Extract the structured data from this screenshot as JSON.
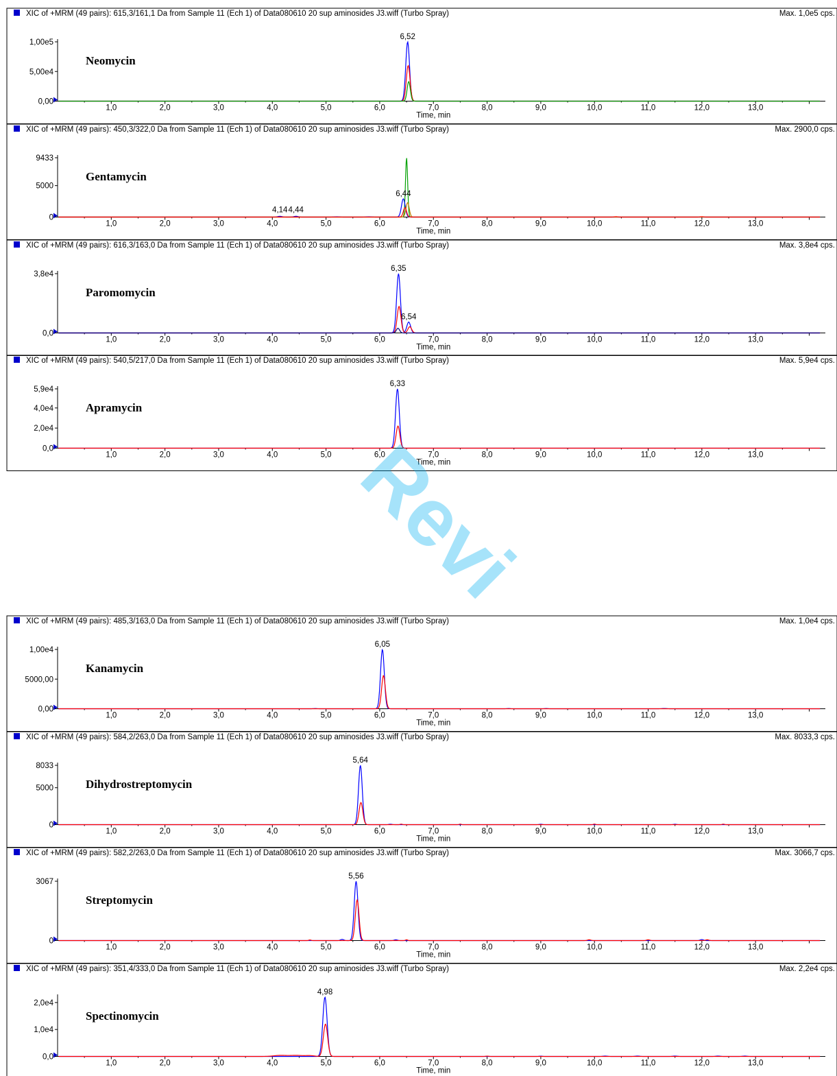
{
  "page": {
    "watermark": "Revi",
    "x_axis": {
      "label": "Time, min",
      "range": [
        0,
        14.3
      ],
      "ticks": [
        "1,0",
        "2,0",
        "3,0",
        "4,0",
        "5,0",
        "6,0",
        "7,0",
        "8,0",
        "9,0",
        "10,0",
        "11,0",
        "12,0",
        "13,0"
      ]
    },
    "colors": {
      "blue": "#0000ff",
      "red": "#ff0000",
      "green": "#00a000",
      "orange": "#c08000",
      "navy": "#000080",
      "frame": "#000000",
      "marker": "#0000cc"
    }
  },
  "chart_data": [
    {
      "type": "line",
      "header": "XIC of +MRM (49 pairs): 615,3/161,1 Da  from Sample 11 (Ech 1) of Data080610  20 sup aminosides J3.wiff (Turbo Spray)",
      "max": "Max. 1,0e5 cps.",
      "compound": "Neomycin",
      "ylim": [
        0,
        100000
      ],
      "y_ticks": [
        {
          "v": 0,
          "t": "0,00"
        },
        {
          "v": 50000,
          "t": "5,00e4"
        },
        {
          "v": 100000,
          "t": "1,00e5"
        }
      ],
      "peak_labels": [
        {
          "t": 6.52,
          "y": 100000,
          "text": "6,52"
        }
      ],
      "series": [
        {
          "color": "blue",
          "peaks": [
            [
              6.52,
              100000,
              0.035
            ]
          ]
        },
        {
          "color": "red",
          "peaks": [
            [
              6.53,
              60000,
              0.035
            ]
          ]
        },
        {
          "color": "green",
          "peaks": [
            [
              6.54,
              33000,
              0.03
            ]
          ]
        }
      ]
    },
    {
      "type": "line",
      "header": "XIC of +MRM (49 pairs): 450,3/322,0 Da  from Sample 11 (Ech 1) of Data080610  20 sup aminosides J3.wiff (Turbo Spray)",
      "max": "Max. 2900,0 cps.",
      "compound": "Gentamycin",
      "ylim": [
        0,
        9433
      ],
      "y_ticks": [
        {
          "v": 0,
          "t": "0"
        },
        {
          "v": 5000,
          "t": "5000"
        },
        {
          "v": 9433,
          "t": "9433"
        }
      ],
      "peak_labels": [
        {
          "t": 4.14,
          "y": 300,
          "text": "4,14"
        },
        {
          "t": 4.44,
          "y": 300,
          "text": "4,44"
        },
        {
          "t": 6.44,
          "y": 2900,
          "text": "6,44"
        }
      ],
      "series": [
        {
          "color": "green",
          "peaks": [
            [
              6.5,
              9433,
              0.02
            ]
          ]
        },
        {
          "color": "blue",
          "peaks": [
            [
              6.44,
              2900,
              0.035
            ],
            [
              4.14,
              120,
              0.04
            ],
            [
              4.44,
              120,
              0.04
            ],
            [
              5.2,
              40,
              0.05
            ],
            [
              5.8,
              40,
              0.05
            ]
          ]
        },
        {
          "color": "orange",
          "peaks": [
            [
              6.52,
              2300,
              0.03
            ]
          ]
        },
        {
          "color": "red",
          "peaks": [
            [
              6.47,
              1500,
              0.03
            ],
            [
              10.4,
              60,
              0.03
            ],
            [
              12.0,
              60,
              0.03
            ]
          ]
        }
      ]
    },
    {
      "type": "line",
      "header": "XIC of +MRM (49 pairs): 616,3/163,0 Da  from Sample 11 (Ech 1) of Data080610  20 sup aminosides J3.wiff (Turbo Spray)",
      "max": "Max. 3,8e4 cps.",
      "compound": "Paromomycin",
      "ylim": [
        0,
        38000
      ],
      "y_ticks": [
        {
          "v": 0,
          "t": "0,0"
        },
        {
          "v": 38000,
          "t": "3,8e4"
        }
      ],
      "peak_labels": [
        {
          "t": 6.35,
          "y": 38000,
          "text": "6,35"
        },
        {
          "t": 6.54,
          "y": 7000,
          "text": "6,54"
        }
      ],
      "series": [
        {
          "color": "blue",
          "peaks": [
            [
              6.35,
              38000,
              0.035
            ],
            [
              6.54,
              7000,
              0.035
            ]
          ]
        },
        {
          "color": "red",
          "peaks": [
            [
              6.36,
              17000,
              0.035
            ],
            [
              6.56,
              4000,
              0.035
            ]
          ]
        },
        {
          "color": "navy",
          "peaks": [
            [
              6.34,
              3000,
              0.03
            ]
          ]
        }
      ]
    },
    {
      "type": "line",
      "header": "XIC of +MRM (49 pairs): 540,5/217,0 Da  from Sample 11 (Ech 1) of Data080610  20 sup aminosides J3.wiff (Turbo Spray)",
      "max": "Max. 5,9e4 cps.",
      "compound": "Apramycin",
      "ylim": [
        0,
        59000
      ],
      "y_ticks": [
        {
          "v": 0,
          "t": "0,0"
        },
        {
          "v": 20000,
          "t": "2,0e4"
        },
        {
          "v": 40000,
          "t": "4,0e4"
        },
        {
          "v": 59000,
          "t": "5,9e4"
        }
      ],
      "peak_labels": [
        {
          "t": 6.33,
          "y": 59000,
          "text": "6,33"
        }
      ],
      "series": [
        {
          "color": "blue",
          "peaks": [
            [
              6.33,
              59000,
              0.035
            ]
          ]
        },
        {
          "color": "red",
          "peaks": [
            [
              6.34,
              22000,
              0.035
            ]
          ]
        }
      ]
    },
    {
      "type": "line",
      "header": "XIC of +MRM (49 pairs): 485,3/163,0 Da  from Sample 11 (Ech 1) of Data080610  20 sup aminosides J3.wiff (Turbo Spray)",
      "max": "Max. 1,0e4 cps.",
      "compound": "Kanamycin",
      "ylim": [
        0,
        10000
      ],
      "y_ticks": [
        {
          "v": 0,
          "t": "0,00"
        },
        {
          "v": 5000,
          "t": "5000,00"
        },
        {
          "v": 10000,
          "t": "1,00e4"
        }
      ],
      "peak_labels": [
        {
          "t": 6.05,
          "y": 10000,
          "text": "6,05"
        }
      ],
      "series": [
        {
          "color": "blue",
          "peaks": [
            [
              6.05,
              10000,
              0.035
            ],
            [
              4.8,
              40,
              0.03
            ],
            [
              8.4,
              40,
              0.03
            ],
            [
              9.1,
              40,
              0.03
            ],
            [
              11.3,
              50,
              0.04
            ]
          ]
        },
        {
          "color": "red",
          "peaks": [
            [
              6.07,
              5600,
              0.035
            ]
          ]
        }
      ]
    },
    {
      "type": "line",
      "header": "XIC of +MRM (49 pairs): 584,2/263,0 Da  from Sample 11 (Ech 1) of Data080610  20 sup aminosides J3.wiff (Turbo Spray)",
      "max": "Max. 8033,3 cps.",
      "compound": "Dihydrostreptomycin",
      "ylim": [
        0,
        8033
      ],
      "y_ticks": [
        {
          "v": 0,
          "t": "0"
        },
        {
          "v": 5000,
          "t": "5000"
        },
        {
          "v": 8033,
          "t": "8033"
        }
      ],
      "peak_labels": [
        {
          "t": 5.64,
          "y": 8033,
          "text": "5,64"
        }
      ],
      "series": [
        {
          "color": "blue",
          "peaks": [
            [
              5.64,
              8033,
              0.035
            ],
            [
              6.2,
              60,
              0.03
            ],
            [
              9.0,
              60,
              0.03
            ],
            [
              11.5,
              60,
              0.03
            ]
          ]
        },
        {
          "color": "red",
          "peaks": [
            [
              5.65,
              3000,
              0.035
            ],
            [
              6.4,
              70,
              0.02
            ],
            [
              7.5,
              70,
              0.02
            ],
            [
              10.0,
              80,
              0.02
            ],
            [
              12.4,
              70,
              0.02
            ]
          ]
        }
      ]
    },
    {
      "type": "line",
      "header": "XIC of +MRM (49 pairs): 582,2/263,0 Da  from Sample 11 (Ech 1) of Data080610  20 sup aminosides J3.wiff (Turbo Spray)",
      "max": "Max. 3066,7 cps.",
      "compound": "Streptomycin",
      "ylim": [
        0,
        3067
      ],
      "y_ticks": [
        {
          "v": 0,
          "t": "0"
        },
        {
          "v": 3067,
          "t": "3067"
        }
      ],
      "peak_labels": [
        {
          "t": 5.56,
          "y": 3067,
          "text": "5,56"
        }
      ],
      "series": [
        {
          "color": "blue",
          "peaks": [
            [
              5.56,
              3067,
              0.035
            ],
            [
              5.3,
              60,
              0.03
            ],
            [
              6.3,
              40,
              0.03
            ],
            [
              12.0,
              50,
              0.03
            ]
          ]
        },
        {
          "color": "red",
          "peaks": [
            [
              5.58,
              2100,
              0.035
            ],
            [
              4.7,
              30,
              0.02
            ],
            [
              6.5,
              40,
              0.02
            ],
            [
              9.9,
              40,
              0.03
            ],
            [
              11.0,
              40,
              0.03
            ],
            [
              12.1,
              40,
              0.03
            ]
          ]
        }
      ]
    },
    {
      "type": "line",
      "header": "XIC of +MRM (49 pairs): 351,4/333,0 Da  from Sample 11 (Ech 1) of Data080610  20 sup aminosides J3.wiff (Turbo Spray)",
      "max": "Max. 2,2e4 cps.",
      "compound": "Spectinomycin",
      "ylim": [
        0,
        22000
      ],
      "y_ticks": [
        {
          "v": 0,
          "t": "0,0"
        },
        {
          "v": 10000,
          "t": "1,0e4"
        },
        {
          "v": 20000,
          "t": "2,0e4"
        }
      ],
      "peak_labels": [
        {
          "t": 4.98,
          "y": 22000,
          "text": "4,98"
        }
      ],
      "series": [
        {
          "color": "blue",
          "peaks": [
            [
              4.98,
              22000,
              0.04
            ],
            [
              9.0,
              120,
              0.03
            ],
            [
              10.2,
              150,
              0.04
            ],
            [
              10.8,
              150,
              0.04
            ],
            [
              11.5,
              150,
              0.04
            ],
            [
              12.3,
              150,
              0.04
            ],
            [
              12.8,
              150,
              0.04
            ]
          ]
        },
        {
          "color": "red",
          "peaks": [
            [
              4.99,
              12000,
              0.04
            ],
            [
              4.15,
              400,
              0.12
            ],
            [
              4.45,
              400,
              0.12
            ],
            [
              4.7,
              300,
              0.08
            ],
            [
              8.0,
              120,
              0.03
            ]
          ]
        }
      ]
    }
  ]
}
